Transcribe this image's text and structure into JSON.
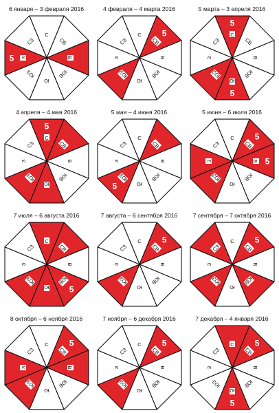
{
  "colors": {
    "filled": "#e0262b",
    "empty": "#ffffff",
    "line": "#111111"
  },
  "periods": [
    {
      "title": "6 января – 3 февраля 2016",
      "filled": [
        "W",
        "E"
      ],
      "fives": [
        "W"
      ]
    },
    {
      "title": "4 февраля – 4 марта 2016",
      "filled": [
        "NE",
        "SW"
      ],
      "fives": [
        "NE"
      ]
    },
    {
      "title": "5 марта – 3 апреля 2016",
      "filled": [
        "N",
        "SW",
        "S"
      ],
      "fives": [
        "N",
        "S"
      ]
    },
    {
      "title": "4 апреля – 4 мая 2016",
      "filled": [
        "N",
        "NE",
        "S",
        "SW"
      ],
      "fives": [
        "N"
      ]
    },
    {
      "title": "5 мая – 4 июня 2016",
      "filled": [
        "NE",
        "SW"
      ],
      "fives": [
        "SW"
      ]
    },
    {
      "title": "5 июня – 6 июля 2016",
      "filled": [
        "NE",
        "E",
        "W",
        "SW"
      ],
      "fives": [
        "NE",
        "E"
      ]
    },
    {
      "title": "7 июля – 6 августа 2016",
      "filled": [
        "N",
        "NE",
        "SE",
        "S",
        "SW"
      ],
      "fives": [
        "SE"
      ]
    },
    {
      "title": "7 августа – 6 сентября 2016",
      "filled": [
        "NE",
        "SW"
      ],
      "fives": [
        "NE"
      ]
    },
    {
      "title": "7 сентября – 7 октября 2016",
      "filled": [
        "NW",
        "NE",
        "SE",
        "SW"
      ],
      "fives": [
        "NE"
      ]
    },
    {
      "title": "8 октября – 6 ноября 2016",
      "filled": [
        "NE",
        "E",
        "W",
        "SW"
      ],
      "fives": [
        "NE"
      ]
    },
    {
      "title": "7 ноября – 6 декабря 2016",
      "filled": [
        "NE",
        "SW"
      ],
      "fives": [
        "NE"
      ]
    },
    {
      "title": "7 декабря – 4 января 2016",
      "filled": [
        "N",
        "NE",
        "S"
      ],
      "fives": [
        "NE",
        "S"
      ]
    }
  ],
  "sectors": [
    {
      "id": "N",
      "label": "С",
      "five": "5"
    },
    {
      "id": "NE",
      "label": "СВ",
      "five": "5"
    },
    {
      "id": "E",
      "label": "В",
      "five": "5"
    },
    {
      "id": "SE",
      "label": "ЮВ",
      "five": "5"
    },
    {
      "id": "S",
      "label": "Ю",
      "five": "5"
    },
    {
      "id": "SW",
      "label": "ЮЗ",
      "five": "5"
    },
    {
      "id": "W",
      "label": "З",
      "five": "5"
    },
    {
      "id": "NW",
      "label": "СЗ",
      "five": "5"
    }
  ]
}
